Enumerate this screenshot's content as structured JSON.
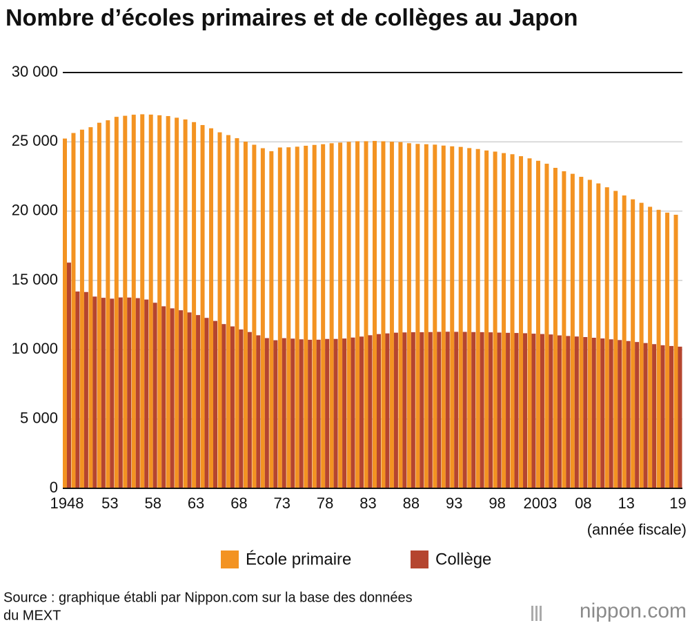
{
  "chart_data": {
    "type": "bar",
    "title": "Nombre d’écoles primaires et de collèges au Japon",
    "x_label": "(année fiscale)",
    "categories": [
      "1948",
      null,
      null,
      null,
      null,
      "53",
      null,
      null,
      null,
      null,
      "58",
      null,
      null,
      null,
      null,
      "63",
      null,
      null,
      null,
      null,
      "68",
      null,
      null,
      null,
      null,
      "73",
      null,
      null,
      null,
      null,
      "78",
      null,
      null,
      null,
      null,
      "83",
      null,
      null,
      null,
      null,
      "88",
      null,
      null,
      null,
      null,
      "93",
      null,
      null,
      null,
      null,
      "98",
      null,
      null,
      null,
      null,
      "2003",
      null,
      null,
      null,
      null,
      "08",
      null,
      null,
      null,
      null,
      "13",
      null,
      null,
      null,
      null,
      null,
      "19"
    ],
    "series": [
      {
        "name": "École primaire",
        "color": "#f39322",
        "values": [
          25237,
          25638,
          25878,
          26056,
          26377,
          26555,
          26804,
          26880,
          26957,
          26988,
          26964,
          26916,
          26858,
          26741,
          26615,
          26423,
          26210,
          25977,
          25687,
          25487,
          25262,
          25013,
          24790,
          24540,
          24325,
          24592,
          24606,
          24650,
          24717,
          24777,
          24828,
          24899,
          24945,
          25005,
          25043,
          25045,
          25064,
          25040,
          25010,
          24982,
          24901,
          24851,
          24827,
          24798,
          24730,
          24676,
          24635,
          24548,
          24482,
          24376,
          24295,
          24188,
          24106,
          23964,
          23808,
          23633,
          23420,
          23123,
          22878,
          22693,
          22476,
          22258,
          22000,
          21721,
          21460,
          21131,
          20852,
          20601,
          20313,
          20095,
          19892,
          19738
        ]
      },
      {
        "name": "Collège",
        "color": "#b5452f",
        "values": [
          16285,
          14200,
          14165,
          13836,
          13748,
          13685,
          13773,
          13767,
          13724,
          13622,
          13392,
          13135,
          12986,
          12849,
          12692,
          12501,
          12298,
          12079,
          11851,
          11684,
          11463,
          11278,
          11040,
          10839,
          10686,
          10836,
          10802,
          10751,
          10719,
          10723,
          10778,
          10780,
          10810,
          10879,
          10950,
          11047,
          11131,
          11180,
          11231,
          11250,
          11266,
          11264,
          11275,
          11290,
          11300,
          11292,
          11289,
          11274,
          11269,
          11257,
          11236,
          11220,
          11209,
          11191,
          11159,
          11134,
          11102,
          11035,
          10992,
          10955,
          10915,
          10864,
          10815,
          10751,
          10699,
          10628,
          10557,
          10484,
          10404,
          10325,
          10270,
          10222
        ]
      }
    ],
    "ylim": [
      0,
      30000
    ],
    "yticks": [
      0,
      {
        "value": 5000,
        "label": "5 000"
      },
      {
        "value": 10000,
        "label": "10 000"
      },
      {
        "value": 15000,
        "label": "15 000"
      },
      {
        "value": 20000,
        "label": "20 000"
      },
      {
        "value": 25000,
        "label": "25 000"
      },
      {
        "value": 30000,
        "label": "30 000"
      }
    ],
    "grid": true,
    "legend": "bottom",
    "source": [
      "Source : graphique établi par Nippon.com sur la base des données",
      "du MEXT"
    ],
    "brand": "nippon.com"
  }
}
